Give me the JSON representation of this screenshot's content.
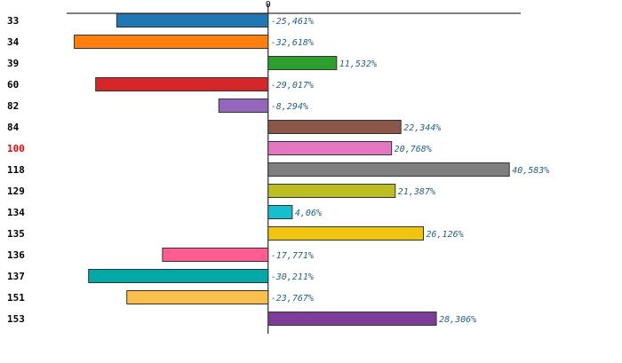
{
  "chart_data": {
    "type": "bar",
    "orientation": "horizontal",
    "categories": [
      "33",
      "34",
      "39",
      "60",
      "82",
      "84",
      "100",
      "118",
      "129",
      "134",
      "135",
      "136",
      "137",
      "151",
      "153"
    ],
    "values": [
      -25.461,
      -32.618,
      11.532,
      -29.017,
      -8.294,
      22.344,
      20.768,
      40.583,
      21.387,
      4.06,
      26.126,
      -17.771,
      -30.211,
      -23.767,
      28.306
    ],
    "value_labels": [
      "-25,461%",
      "-32,618%",
      "11,532%",
      "-29,017%",
      "-8,294%",
      "22,344%",
      "20,768%",
      "40,583%",
      "21,387%",
      "4,06%",
      "26,126%",
      "-17,771%",
      "-30,211%",
      "-23,767%",
      "28,306%"
    ],
    "colors": [
      "#1f77b4",
      "#ff7f0e",
      "#2ca02c",
      "#d62728",
      "#9467bd",
      "#8c564b",
      "#e377c2",
      "#7f7f7f",
      "#bcbd22",
      "#17becf",
      "#f1c40f",
      "#ff5c93",
      "#00a8a8",
      "#fbc04c",
      "#7d3c98"
    ],
    "highlight_category": "100",
    "highlight_color": "#ff0000",
    "label_color": "#1f5f8b",
    "x_tick_labels": [
      "0"
    ],
    "xlim": [
      -33.3,
      41.6
    ],
    "title": "",
    "xlabel": "",
    "ylabel": "",
    "grid": false,
    "legend": false
  }
}
